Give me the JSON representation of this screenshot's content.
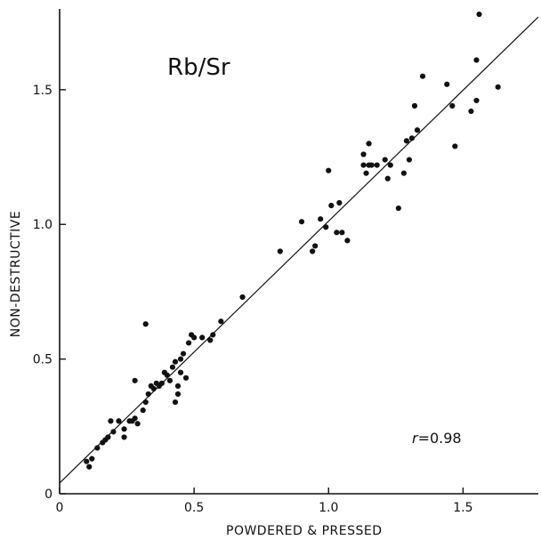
{
  "chart_data": {
    "type": "scatter",
    "title": "Rb/Sr",
    "xlabel": "POWDERED & PRESSED",
    "ylabel": "NON-DESTRUCTIVE",
    "xlim": [
      0,
      1.78
    ],
    "ylim": [
      0,
      1.8
    ],
    "x_ticks": [
      0,
      0.5,
      1.0,
      1.5
    ],
    "x_tick_labels": [
      "0",
      "0.5",
      "1.0",
      "1.5"
    ],
    "y_ticks": [
      0,
      0.5,
      1.0,
      1.5
    ],
    "y_tick_labels": [
      "0",
      "0.5",
      "1.0",
      "1.5"
    ],
    "grid": false,
    "annotation_prefix": "r",
    "annotation_value": "=0.98",
    "fit_line": {
      "x": [
        0,
        1.78
      ],
      "y": [
        0.04,
        1.77
      ]
    },
    "points": [
      [
        0.1,
        0.12
      ],
      [
        0.11,
        0.1
      ],
      [
        0.12,
        0.13
      ],
      [
        0.14,
        0.17
      ],
      [
        0.16,
        0.19
      ],
      [
        0.17,
        0.2
      ],
      [
        0.18,
        0.21
      ],
      [
        0.2,
        0.23
      ],
      [
        0.19,
        0.27
      ],
      [
        0.22,
        0.27
      ],
      [
        0.24,
        0.24
      ],
      [
        0.24,
        0.21
      ],
      [
        0.26,
        0.27
      ],
      [
        0.27,
        0.27
      ],
      [
        0.28,
        0.28
      ],
      [
        0.29,
        0.26
      ],
      [
        0.28,
        0.42
      ],
      [
        0.31,
        0.31
      ],
      [
        0.32,
        0.34
      ],
      [
        0.32,
        0.63
      ],
      [
        0.33,
        0.37
      ],
      [
        0.34,
        0.4
      ],
      [
        0.35,
        0.39
      ],
      [
        0.36,
        0.41
      ],
      [
        0.37,
        0.4
      ],
      [
        0.38,
        0.41
      ],
      [
        0.39,
        0.45
      ],
      [
        0.4,
        0.44
      ],
      [
        0.41,
        0.42
      ],
      [
        0.42,
        0.47
      ],
      [
        0.43,
        0.49
      ],
      [
        0.43,
        0.34
      ],
      [
        0.44,
        0.4
      ],
      [
        0.44,
        0.37
      ],
      [
        0.45,
        0.45
      ],
      [
        0.45,
        0.5
      ],
      [
        0.46,
        0.52
      ],
      [
        0.47,
        0.43
      ],
      [
        0.48,
        0.56
      ],
      [
        0.49,
        0.59
      ],
      [
        0.5,
        0.58
      ],
      [
        0.53,
        0.58
      ],
      [
        0.56,
        0.57
      ],
      [
        0.57,
        0.59
      ],
      [
        0.6,
        0.64
      ],
      [
        0.68,
        0.73
      ],
      [
        0.82,
        0.9
      ],
      [
        0.9,
        1.01
      ],
      [
        0.94,
        0.9
      ],
      [
        0.95,
        0.92
      ],
      [
        0.97,
        1.02
      ],
      [
        0.99,
        0.99
      ],
      [
        1.0,
        1.2
      ],
      [
        1.01,
        1.07
      ],
      [
        1.03,
        0.97
      ],
      [
        1.04,
        1.08
      ],
      [
        1.05,
        0.97
      ],
      [
        1.07,
        0.94
      ],
      [
        1.13,
        1.22
      ],
      [
        1.13,
        1.26
      ],
      [
        1.14,
        1.19
      ],
      [
        1.15,
        1.22
      ],
      [
        1.15,
        1.3
      ],
      [
        1.16,
        1.22
      ],
      [
        1.18,
        1.22
      ],
      [
        1.21,
        1.24
      ],
      [
        1.22,
        1.17
      ],
      [
        1.23,
        1.22
      ],
      [
        1.26,
        1.06
      ],
      [
        1.28,
        1.19
      ],
      [
        1.29,
        1.31
      ],
      [
        1.3,
        1.24
      ],
      [
        1.31,
        1.32
      ],
      [
        1.32,
        1.44
      ],
      [
        1.33,
        1.35
      ],
      [
        1.35,
        1.55
      ],
      [
        1.44,
        1.52
      ],
      [
        1.46,
        1.44
      ],
      [
        1.47,
        1.29
      ],
      [
        1.53,
        1.42
      ],
      [
        1.55,
        1.46
      ],
      [
        1.55,
        1.61
      ],
      [
        1.56,
        1.78
      ],
      [
        1.63,
        1.51
      ]
    ]
  }
}
